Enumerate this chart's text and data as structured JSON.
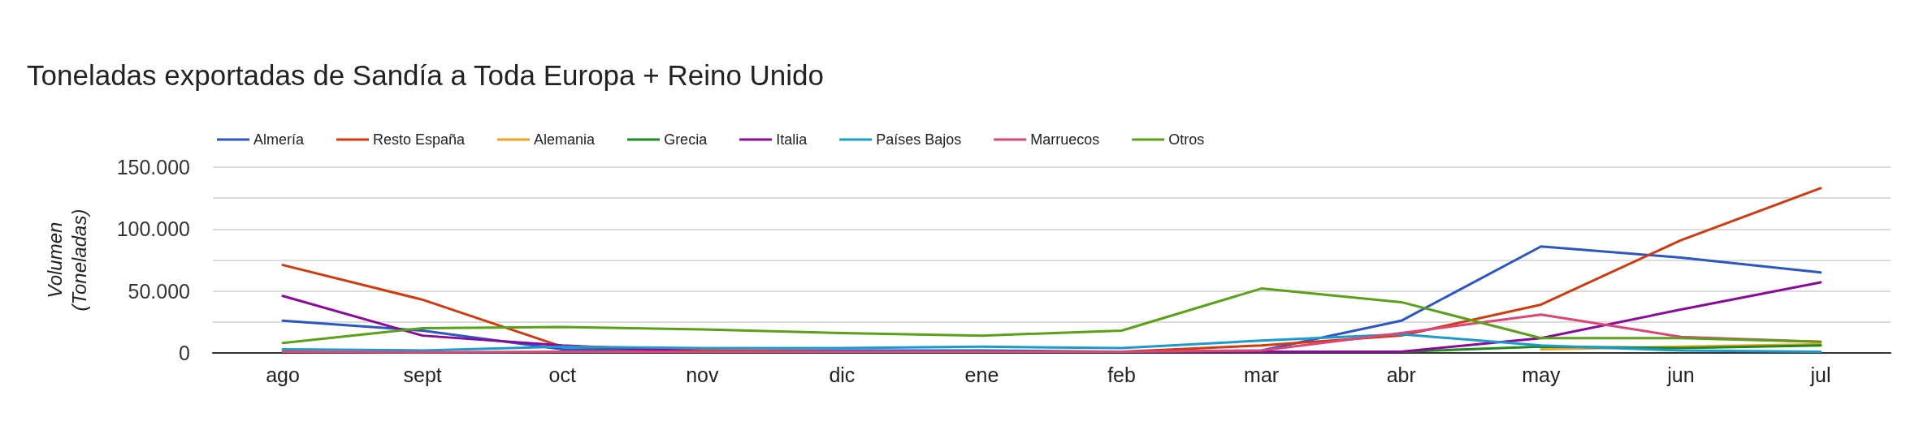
{
  "chart_data": {
    "type": "line",
    "title": "Toneladas exportadas de Sandía a Toda Europa + Reino Unido",
    "ylabel": "Volumen\n(Toneladas)",
    "categories": [
      "ago",
      "sept",
      "oct",
      "nov",
      "dic",
      "ene",
      "feb",
      "mar",
      "abr",
      "may",
      "jun",
      "jul"
    ],
    "ylim": [
      0,
      150000
    ],
    "yticks": [
      {
        "value": 0,
        "label": "0"
      },
      {
        "value": 25000,
        "label": null
      },
      {
        "value": 50000,
        "label": "50.000"
      },
      {
        "value": 75000,
        "label": null
      },
      {
        "value": 100000,
        "label": "100.000"
      },
      {
        "value": 125000,
        "label": null
      },
      {
        "value": 150000,
        "label": "150.000"
      }
    ],
    "grid": "y",
    "legend": "top left",
    "marker": "none",
    "line_style": "solid",
    "series": [
      {
        "name": "Almería",
        "color": "#2a56c6",
        "values": [
          26000,
          18000,
          3000,
          2000,
          2000,
          2000,
          1000,
          2000,
          26000,
          86000,
          77000,
          65000
        ]
      },
      {
        "name": "Resto España",
        "color": "#d23a0e",
        "values": [
          71000,
          43000,
          5000,
          2000,
          1000,
          1000,
          1000,
          6000,
          14000,
          39000,
          91000,
          133000
        ]
      },
      {
        "name": "Alemania",
        "color": "#f4a21e",
        "values": [
          null,
          null,
          null,
          null,
          null,
          null,
          null,
          null,
          null,
          3000,
          5000,
          7000
        ]
      },
      {
        "name": "Grecia",
        "color": "#1d8a1d",
        "values": [
          null,
          null,
          null,
          null,
          null,
          null,
          null,
          null,
          1000,
          5000,
          4000,
          6000
        ]
      },
      {
        "name": "Italia",
        "color": "#8b0a9b",
        "values": [
          46000,
          14000,
          6000,
          1000,
          1000,
          1000,
          1000,
          1000,
          1000,
          12000,
          35000,
          57000
        ]
      },
      {
        "name": "Países Bajos",
        "color": "#1a9bd0",
        "values": [
          3000,
          2000,
          5000,
          4000,
          4000,
          5000,
          4000,
          10000,
          15000,
          6000,
          2000,
          1000
        ]
      },
      {
        "name": "Marruecos",
        "color": "#dd4477",
        "values": [
          1000,
          500,
          1000,
          1000,
          1000,
          1000,
          1000,
          2000,
          16000,
          31000,
          13000,
          9000
        ]
      },
      {
        "name": "Otros",
        "color": "#5aa118",
        "values": [
          8000,
          20000,
          21000,
          19000,
          16000,
          14000,
          18000,
          52000,
          41000,
          12000,
          12000,
          9000
        ]
      }
    ]
  }
}
